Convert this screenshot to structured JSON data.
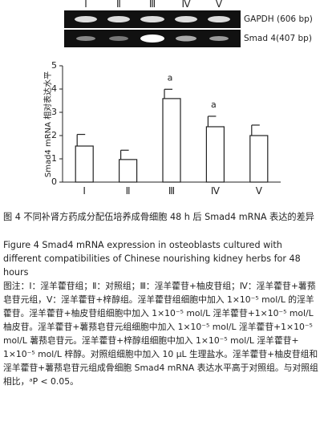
{
  "figure": {
    "gel": {
      "lanes": [
        "Ⅰ",
        "Ⅱ",
        "Ⅲ",
        "Ⅳ",
        "Ⅴ"
      ],
      "labels": [
        "GAPDH (606 bp)",
        "Smad 4(407 bp)"
      ]
    },
    "caption_cn": "图 4  不同补肾方药成分配伍培养成骨细胞 48 h 后 Smad4 mRNA 表达的差异",
    "caption_en": "Figure 4   Smad4 mRNA expression in osteoblasts cultured with different compatibilities of Chinese nourishing kidney herbs for 48 hours",
    "note": "图注：Ⅰ：淫羊藿苷组；Ⅱ：对照组；Ⅲ：淫羊藿苷+柚皮苷组；Ⅳ：淫羊藿苷+薯蓣皂苷元组，Ⅴ：淫羊藿苷+梓醇组。淫羊藿苷组细胞中加入 1×10⁻⁵ mol/L 的淫羊藿苷。淫羊藿苷+柚皮苷组细胞中加入 1×10⁻⁵ mol/L 淫羊藿苷+1×10⁻⁵ mol/L 柚皮苷。淫羊藿苷+薯蓣皂苷元组细胞中加入 1×10⁻⁵ mol/L 淫羊藿苷+1×10⁻⁵ mol/L 薯蓣皂苷元。淫羊藿苷+梓醇组细胞中加入 1×10⁻⁵ mol/L 淫羊藿苷+ 1×10⁻⁵ mol/L 梓醇。对照组细胞中加入 10 μL 生理盐水。淫羊藿苷+柚皮苷组和淫羊藿苷+薯蓣皂苷元组成骨细胞 Smad4 mRNA 表达水平高于对照组。与对照组相比，ᵃP < 0.05。"
  },
  "chart_data": {
    "type": "bar",
    "y_label": "Smad4 mRNA 相对表达水平",
    "categories": [
      "Ⅰ",
      "Ⅱ",
      "Ⅲ",
      "Ⅳ",
      "Ⅴ"
    ],
    "values": [
      1.55,
      0.97,
      3.59,
      2.38,
      2.0
    ],
    "errors": [
      0.5,
      0.4,
      0.4,
      0.45,
      0.45
    ],
    "color": "#ffffff",
    "ylim": [
      0,
      5
    ],
    "yticks": [
      0,
      1,
      2,
      3,
      4,
      5
    ],
    "annotations": [
      {
        "text": "a",
        "category": "Ⅲ"
      },
      {
        "text": "a",
        "category": "Ⅳ"
      }
    ]
  }
}
